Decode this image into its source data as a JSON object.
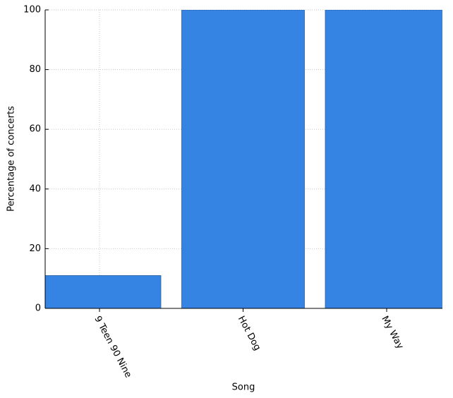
{
  "chart_data": {
    "type": "bar",
    "categories": [
      "9 Teen 90 Nine",
      "Hot Dog",
      "My Way"
    ],
    "values": [
      11,
      100,
      100
    ],
    "color": "#3584e4",
    "xlabel": "Song",
    "ylabel": "Percentage of concerts",
    "ylim": [
      0,
      100
    ],
    "yticks": [
      0,
      20,
      40,
      60,
      80,
      100
    ],
    "grid": true
  }
}
